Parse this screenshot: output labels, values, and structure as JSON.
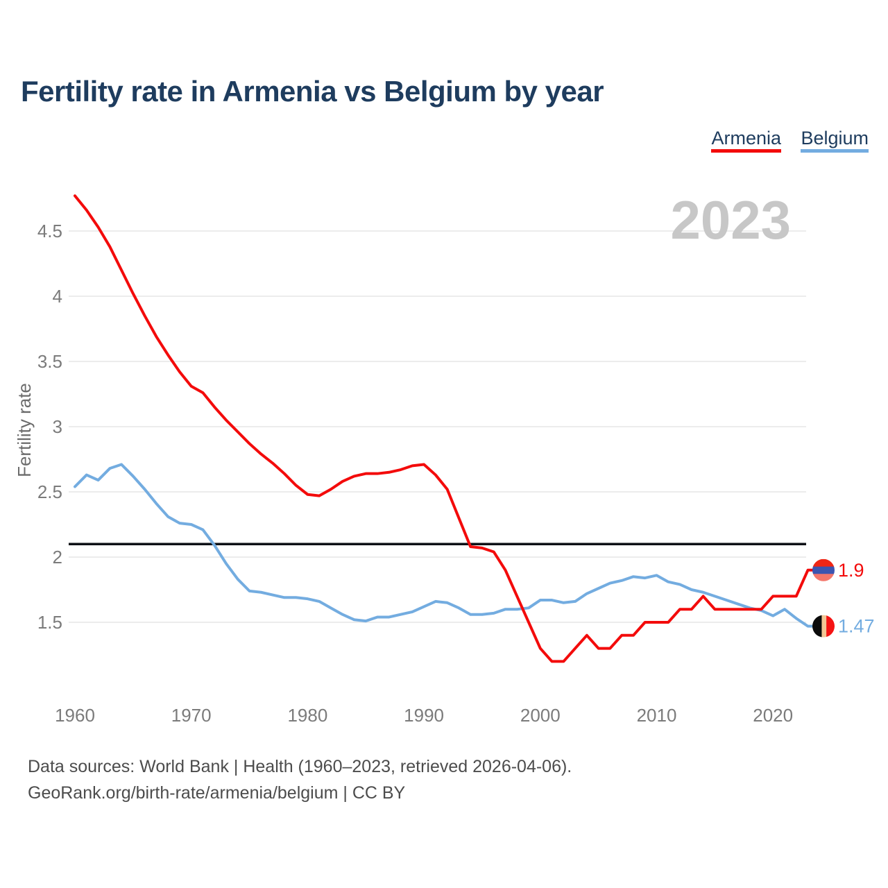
{
  "chart_data": {
    "type": "line",
    "title": "Fertility rate in Armenia vs Belgium by year",
    "ylabel": "Fertility rate",
    "xlabel": "",
    "watermark_year": "2023",
    "legend_position": "top-right",
    "grid": "horizontal-only",
    "reference_line_y": 2.1,
    "ylim": [
      1.1,
      4.85
    ],
    "xlim": [
      1960,
      2023
    ],
    "yticks": [
      1.5,
      2,
      2.5,
      3,
      3.5,
      4,
      4.5
    ],
    "xticks": [
      1960,
      1970,
      1980,
      1990,
      2000,
      2010,
      2020
    ],
    "x": [
      1960,
      1961,
      1962,
      1963,
      1964,
      1965,
      1966,
      1967,
      1968,
      1969,
      1970,
      1971,
      1972,
      1973,
      1974,
      1975,
      1976,
      1977,
      1978,
      1979,
      1980,
      1981,
      1982,
      1983,
      1984,
      1985,
      1986,
      1987,
      1988,
      1989,
      1990,
      1991,
      1992,
      1993,
      1994,
      1995,
      1996,
      1997,
      1998,
      1999,
      2000,
      2001,
      2002,
      2003,
      2004,
      2005,
      2006,
      2007,
      2008,
      2009,
      2010,
      2011,
      2012,
      2013,
      2014,
      2015,
      2016,
      2017,
      2018,
      2019,
      2020,
      2021,
      2022,
      2023
    ],
    "series": [
      {
        "name": "Armenia",
        "color": "#f30b0b",
        "end_label": "1.9",
        "flag": {
          "orientation": "horizontal",
          "stripes": [
            "#ef2615",
            "#3c55b0",
            "#f4766b"
          ],
          "fractions": [
            0.34,
            0.33,
            0.33
          ]
        },
        "values": [
          4.77,
          4.66,
          4.53,
          4.38,
          4.2,
          4.02,
          3.85,
          3.69,
          3.55,
          3.42,
          3.31,
          3.26,
          3.15,
          3.05,
          2.96,
          2.87,
          2.79,
          2.72,
          2.64,
          2.55,
          2.48,
          2.47,
          2.52,
          2.58,
          2.62,
          2.64,
          2.64,
          2.65,
          2.67,
          2.7,
          2.71,
          2.63,
          2.52,
          2.3,
          2.08,
          2.07,
          2.04,
          1.9,
          1.7,
          1.5,
          1.3,
          1.2,
          1.2,
          1.3,
          1.4,
          1.3,
          1.3,
          1.4,
          1.4,
          1.5,
          1.5,
          1.5,
          1.6,
          1.6,
          1.7,
          1.6,
          1.6,
          1.6,
          1.6,
          1.6,
          1.7,
          1.7,
          1.7,
          1.9
        ]
      },
      {
        "name": "Belgium",
        "color": "#73ace0",
        "end_label": "1.47",
        "flag": {
          "orientation": "vertical",
          "stripes": [
            "#0b0b0b",
            "#f2c795",
            "#f51313"
          ],
          "fractions": [
            0.42,
            0.21,
            0.37
          ]
        },
        "values": [
          2.54,
          2.63,
          2.59,
          2.68,
          2.71,
          2.62,
          2.52,
          2.41,
          2.31,
          2.26,
          2.25,
          2.21,
          2.09,
          1.95,
          1.83,
          1.74,
          1.73,
          1.71,
          1.69,
          1.69,
          1.68,
          1.66,
          1.61,
          1.56,
          1.52,
          1.51,
          1.54,
          1.54,
          1.56,
          1.58,
          1.62,
          1.66,
          1.65,
          1.61,
          1.56,
          1.56,
          1.57,
          1.6,
          1.6,
          1.61,
          1.67,
          1.67,
          1.65,
          1.66,
          1.72,
          1.76,
          1.8,
          1.82,
          1.85,
          1.84,
          1.86,
          1.81,
          1.79,
          1.75,
          1.73,
          1.7,
          1.67,
          1.64,
          1.61,
          1.59,
          1.55,
          1.6,
          1.53,
          1.47
        ]
      }
    ]
  },
  "footer": {
    "line1": "Data sources: World Bank | Health (1960–2023, retrieved 2026-04-06).",
    "line2": "GeoRank.org/birth-rate/armenia/belgium | CC BY"
  }
}
